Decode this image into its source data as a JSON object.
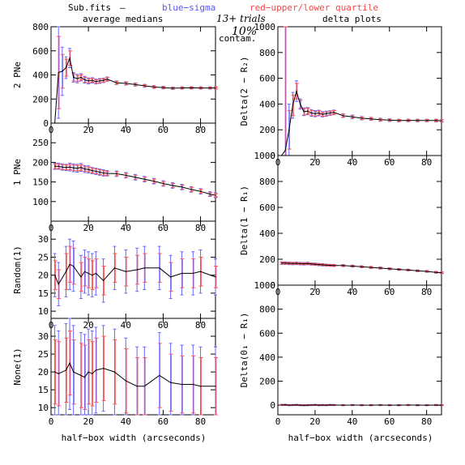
{
  "header": {
    "file": "Sub.fits",
    "dash": "—",
    "blue_label": "blue−sigma",
    "red_label": "red−upper/lower quartile",
    "left_title": "average medians",
    "right_title": "delta plots",
    "trials": "13+ trials",
    "contam_pct": "10%",
    "contam_word": "contam."
  },
  "xlabel": "half−box width (arcseconds)",
  "colors": {
    "median": "#000000",
    "sigma": "#6666ff",
    "quartile": "#ff5555",
    "axis": "#000000"
  },
  "chart_data": [
    {
      "type": "line",
      "title": "",
      "xlabel": "",
      "ylabel": "2 PNe",
      "xlim": [
        0,
        88
      ],
      "ylim": [
        0,
        800
      ],
      "xticks": [
        0,
        20,
        40,
        60,
        80
      ],
      "yticks": [
        0,
        200,
        400,
        600,
        800
      ],
      "x": [
        2,
        4,
        6,
        8,
        10,
        12,
        14,
        16,
        18,
        20,
        22,
        24,
        26,
        28,
        30,
        35,
        40,
        45,
        50,
        55,
        60,
        65,
        70,
        75,
        80,
        85,
        88
      ],
      "y": [
        0,
        420,
        430,
        460,
        540,
        380,
        370,
        380,
        360,
        350,
        355,
        345,
        350,
        355,
        365,
        335,
        330,
        320,
        310,
        300,
        295,
        290,
        292,
        293,
        292,
        292,
        292
      ],
      "sigma": [
        0,
        380,
        200,
        90,
        80,
        40,
        35,
        30,
        28,
        25,
        22,
        20,
        20,
        18,
        18,
        15,
        14,
        13,
        12,
        12,
        11,
        10,
        10,
        10,
        10,
        10,
        10
      ],
      "quartile": [
        0,
        300,
        140,
        70,
        60,
        30,
        25,
        22,
        20,
        18,
        16,
        15,
        15,
        14,
        14,
        12,
        11,
        10,
        9,
        9,
        8,
        8,
        8,
        8,
        8,
        8,
        8
      ]
    },
    {
      "type": "line",
      "title": "",
      "xlabel": "",
      "ylabel": "Delta(2 − R₂)",
      "xlim": [
        0,
        88
      ],
      "ylim": [
        0,
        1000
      ],
      "xticks": [
        0,
        20,
        40,
        60,
        80
      ],
      "yticks": [
        0,
        200,
        400,
        600,
        800
      ],
      "x": [
        2,
        4,
        6,
        8,
        10,
        12,
        14,
        16,
        18,
        20,
        22,
        24,
        26,
        28,
        30,
        35,
        40,
        45,
        50,
        55,
        60,
        65,
        70,
        75,
        80,
        85,
        88
      ],
      "y": [
        0,
        40,
        200,
        390,
        500,
        400,
        340,
        345,
        330,
        325,
        330,
        320,
        325,
        330,
        335,
        310,
        300,
        290,
        285,
        278,
        275,
        272,
        273,
        272,
        272,
        272,
        270
      ],
      "sigma": [
        0,
        1000,
        200,
        100,
        80,
        40,
        30,
        28,
        26,
        24,
        22,
        20,
        20,
        18,
        18,
        15,
        14,
        13,
        12,
        12,
        11,
        10,
        10,
        10,
        10,
        10,
        10
      ],
      "quartile": [
        0,
        1000,
        150,
        80,
        60,
        30,
        25,
        22,
        20,
        18,
        16,
        15,
        15,
        14,
        14,
        12,
        11,
        10,
        9,
        9,
        8,
        8,
        8,
        8,
        8,
        8,
        8
      ]
    },
    {
      "type": "line",
      "title": "",
      "xlabel": "",
      "ylabel": "1 PNe",
      "xlim": [
        0,
        88
      ],
      "ylim": [
        50,
        300
      ],
      "xticks": [
        0,
        20,
        40,
        60,
        80
      ],
      "yticks": [
        100,
        150,
        200,
        250
      ],
      "x": [
        2,
        4,
        6,
        8,
        10,
        12,
        14,
        16,
        18,
        20,
        22,
        24,
        26,
        28,
        30,
        35,
        40,
        45,
        50,
        55,
        60,
        65,
        70,
        75,
        80,
        85,
        88
      ],
      "y": [
        190,
        190,
        188,
        187,
        188,
        186,
        185,
        187,
        183,
        182,
        179,
        177,
        175,
        173,
        172,
        171,
        167,
        162,
        157,
        152,
        146,
        141,
        137,
        131,
        126,
        119,
        116
      ],
      "sigma": [
        8,
        8,
        8,
        8,
        10,
        10,
        10,
        10,
        9,
        9,
        8,
        8,
        8,
        8,
        7,
        7,
        7,
        7,
        7,
        7,
        7,
        7,
        7,
        7,
        7,
        6,
        6
      ],
      "quartile": [
        6,
        6,
        6,
        6,
        7,
        7,
        7,
        7,
        6,
        6,
        6,
        6,
        6,
        6,
        5,
        5,
        5,
        5,
        5,
        5,
        5,
        5,
        5,
        5,
        5,
        4,
        4
      ]
    },
    {
      "type": "line",
      "title": "",
      "xlabel": "",
      "ylabel": "Delta(1 − R₁)",
      "xlim": [
        0,
        88
      ],
      "ylim": [
        0,
        1000
      ],
      "xticks": [
        0,
        20,
        40,
        60,
        80
      ],
      "yticks": [
        0,
        200,
        400,
        600,
        800
      ],
      "x": [
        2,
        4,
        6,
        8,
        10,
        12,
        14,
        16,
        18,
        20,
        22,
        24,
        26,
        28,
        30,
        35,
        40,
        45,
        50,
        55,
        60,
        65,
        70,
        75,
        80,
        85,
        88
      ],
      "y": [
        170,
        170,
        168,
        167,
        168,
        166,
        165,
        167,
        163,
        162,
        159,
        157,
        155,
        153,
        152,
        151,
        147,
        142,
        137,
        132,
        126,
        121,
        117,
        111,
        106,
        99,
        96
      ],
      "sigma": [
        10,
        10,
        10,
        10,
        10,
        10,
        10,
        10,
        9,
        9,
        9,
        9,
        8,
        8,
        8,
        8,
        8,
        8,
        8,
        8,
        8,
        7,
        7,
        7,
        7,
        7,
        7
      ],
      "quartile": [
        7,
        7,
        7,
        7,
        7,
        7,
        7,
        7,
        6,
        6,
        6,
        6,
        6,
        6,
        6,
        6,
        6,
        6,
        6,
        6,
        6,
        5,
        5,
        5,
        5,
        5,
        5
      ]
    },
    {
      "type": "line",
      "title": "",
      "xlabel": "",
      "ylabel": "Random(1)",
      "xlim": [
        0,
        88
      ],
      "ylim": [
        8,
        35
      ],
      "xticks": [
        0,
        20,
        40,
        60,
        80
      ],
      "yticks": [
        10,
        15,
        20,
        25,
        30
      ],
      "x": [
        2,
        4,
        8,
        10,
        12,
        16,
        18,
        20,
        22,
        24,
        28,
        34,
        40,
        46,
        50,
        58,
        64,
        70,
        76,
        80,
        88
      ],
      "y": [
        20,
        17.5,
        21,
        23,
        22.5,
        19.5,
        21,
        20.5,
        20,
        20.5,
        18.5,
        22,
        21,
        21.5,
        22,
        22,
        19.5,
        20.5,
        20.5,
        21,
        19.5
      ],
      "sigma": [
        6,
        6,
        7,
        7,
        7,
        6,
        6,
        6,
        6,
        6,
        6,
        6,
        6,
        6,
        6,
        6,
        6,
        6,
        6,
        6,
        5
      ],
      "quartile": [
        4,
        4,
        5,
        5,
        5,
        4,
        4,
        4,
        4,
        4,
        4,
        4,
        4,
        4,
        4,
        4,
        4,
        4,
        4,
        4,
        3
      ]
    },
    {
      "type": "line",
      "title": "",
      "xlabel": "",
      "ylabel": "Delta(1 − R₁)",
      "xlim": [
        0,
        88
      ],
      "ylim": [
        0,
        1000
      ],
      "xticks": [
        0,
        20,
        40,
        60,
        80
      ],
      "yticks": [
        0,
        200,
        400,
        600,
        800
      ],
      "x": [
        2,
        4,
        6,
        8,
        10,
        12,
        14,
        16,
        18,
        20,
        22,
        24,
        26,
        28,
        30,
        35,
        40,
        45,
        50,
        55,
        60,
        65,
        70,
        75,
        80,
        85,
        88
      ],
      "y": [
        170,
        170,
        168,
        167,
        168,
        166,
        165,
        167,
        163,
        162,
        159,
        157,
        155,
        153,
        152,
        151,
        147,
        142,
        137,
        132,
        126,
        121,
        117,
        111,
        106,
        99,
        96
      ],
      "sigma": [
        10,
        10,
        10,
        10,
        10,
        10,
        10,
        10,
        9,
        9,
        9,
        9,
        8,
        8,
        8,
        8,
        8,
        8,
        8,
        8,
        8,
        7,
        7,
        7,
        7,
        7,
        7
      ],
      "quartile": [
        7,
        7,
        7,
        7,
        7,
        7,
        7,
        7,
        6,
        6,
        6,
        6,
        6,
        6,
        6,
        6,
        6,
        6,
        6,
        6,
        6,
        5,
        5,
        5,
        5,
        5,
        5
      ]
    },
    {
      "type": "line",
      "title": "",
      "xlabel": "",
      "ylabel": "None(1)",
      "xlim": [
        0,
        88
      ],
      "ylim": [
        8,
        35
      ],
      "xticks": [
        0,
        20,
        40,
        60,
        80
      ],
      "yticks": [
        10,
        15,
        20,
        25,
        30
      ],
      "x": [
        2,
        4,
        8,
        10,
        12,
        16,
        18,
        20,
        22,
        24,
        28,
        34,
        40,
        46,
        50,
        58,
        64,
        70,
        76,
        80,
        88
      ],
      "y": [
        20,
        19.5,
        20.5,
        22.5,
        20,
        19,
        18.5,
        20,
        19.5,
        20.5,
        21,
        20,
        17.5,
        16,
        16,
        19,
        17,
        16.5,
        16.5,
        16,
        16
      ],
      "sigma": [
        13,
        12,
        13,
        13,
        13,
        12,
        12,
        12,
        12,
        12,
        12,
        12,
        12,
        11,
        11,
        12,
        11,
        11,
        11,
        11,
        11
      ],
      "quartile": [
        9,
        9,
        9,
        9,
        9,
        9,
        9,
        9,
        9,
        9,
        9,
        9,
        9,
        8,
        8,
        9,
        8,
        8,
        8,
        8,
        8
      ]
    },
    {
      "type": "line",
      "title": "",
      "xlabel": "half−box width (arcseconds)",
      "ylabel": "Delta(0₁ − R₁)",
      "xlim": [
        0,
        88
      ],
      "ylim": [
        -80,
        1000
      ],
      "xticks": [
        0,
        20,
        40,
        60,
        80
      ],
      "yticks": [
        0,
        200,
        400,
        600,
        800
      ],
      "x": [
        2,
        4,
        6,
        8,
        10,
        12,
        14,
        16,
        18,
        20,
        22,
        24,
        26,
        28,
        30,
        35,
        40,
        45,
        50,
        55,
        60,
        65,
        70,
        75,
        80,
        85,
        88
      ],
      "y": [
        2,
        3,
        0,
        1,
        2,
        0,
        -1,
        0,
        1,
        2,
        0,
        1,
        0,
        2,
        1,
        0,
        1,
        0,
        0,
        1,
        0,
        0,
        1,
        0,
        0,
        1,
        0
      ],
      "sigma": [
        5,
        5,
        5,
        5,
        5,
        5,
        5,
        5,
        5,
        5,
        5,
        5,
        5,
        5,
        5,
        5,
        5,
        5,
        5,
        5,
        5,
        5,
        5,
        5,
        5,
        5,
        5
      ],
      "quartile": [
        3,
        3,
        3,
        3,
        3,
        3,
        3,
        3,
        3,
        3,
        3,
        3,
        3,
        3,
        3,
        3,
        3,
        3,
        3,
        3,
        3,
        3,
        3,
        3,
        3,
        3,
        3
      ]
    }
  ]
}
